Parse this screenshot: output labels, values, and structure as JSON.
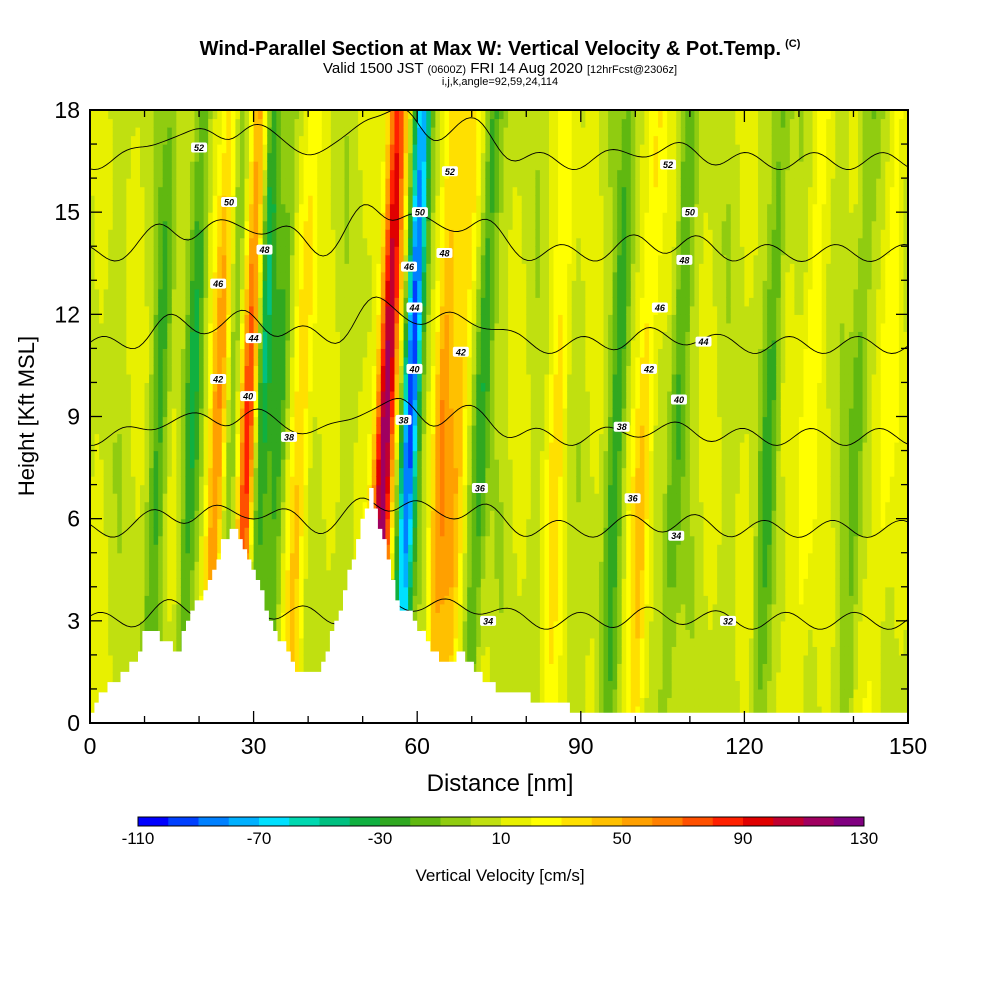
{
  "header": {
    "title_main": "Wind-Parallel Section at Max W: Vertical Velocity & Pot.Temp.",
    "title_mark": "(C)",
    "valid_a": "Valid 1500 JST",
    "valid_b": "(0600Z)",
    "valid_c": "FRI 14 Aug 2020",
    "valid_d": "[12hrFcst@2306z]",
    "indices": "i,j,k,angle=92,59,24,114"
  },
  "chart_data": {
    "type": "heatmap",
    "xlabel": "Distance [nm]",
    "ylabel": "Height [Kft MSL]",
    "xlim": [
      0,
      150
    ],
    "ylim": [
      0,
      18
    ],
    "x_ticks": [
      0,
      30,
      60,
      90,
      120,
      150
    ],
    "y_ticks": [
      0,
      3,
      6,
      9,
      12,
      15,
      18
    ],
    "colorbar": {
      "label": "Vertical Velocity [cm/s]",
      "tick_labels": [
        -110,
        -70,
        -30,
        10,
        50,
        90,
        130
      ],
      "min": -110,
      "max": 130,
      "colors": [
        "#0000ff",
        "#0040ff",
        "#0080ff",
        "#00b0ff",
        "#00e0ff",
        "#00d8b0",
        "#00c080",
        "#10b040",
        "#30a820",
        "#60b810",
        "#90cc10",
        "#c0e010",
        "#e8f000",
        "#ffff00",
        "#ffe000",
        "#ffc000",
        "#ffa000",
        "#ff8000",
        "#ff5000",
        "#ff2000",
        "#e00000",
        "#c00030",
        "#a00060",
        "#800080"
      ]
    },
    "updraft_bands": [
      {
        "x": 23,
        "strength": 55
      },
      {
        "x": 28.5,
        "strength": 80
      },
      {
        "x": 38,
        "strength": 35
      },
      {
        "x": 53.5,
        "strength": 120
      },
      {
        "x": 64,
        "strength": 45
      },
      {
        "x": 67,
        "strength": 40
      },
      {
        "x": 85,
        "strength": 25
      },
      {
        "x": 101,
        "strength": 35
      },
      {
        "x": 131,
        "strength": 22
      },
      {
        "x": 145,
        "strength": 20
      }
    ],
    "downdraft_bands": [
      {
        "x": 12,
        "strength": -30
      },
      {
        "x": 18,
        "strength": -35
      },
      {
        "x": 25,
        "strength": -25
      },
      {
        "x": 30.5,
        "strength": -60
      },
      {
        "x": 34,
        "strength": -30
      },
      {
        "x": 58,
        "strength": -110
      },
      {
        "x": 71,
        "strength": -40
      },
      {
        "x": 96,
        "strength": -35
      },
      {
        "x": 107,
        "strength": -30
      },
      {
        "x": 124,
        "strength": -30
      },
      {
        "x": 140,
        "strength": -25
      }
    ],
    "potential_temperature": {
      "levels": [
        32,
        34,
        36,
        38,
        40,
        42,
        44,
        46,
        48,
        50,
        52
      ],
      "labels": [
        {
          "text": "52",
          "x": 20,
          "y": 16.9
        },
        {
          "text": "50",
          "x": 25.5,
          "y": 15.3
        },
        {
          "text": "48",
          "x": 32,
          "y": 13.9
        },
        {
          "text": "46",
          "x": 23.5,
          "y": 12.9
        },
        {
          "text": "44",
          "x": 30,
          "y": 11.3
        },
        {
          "text": "42",
          "x": 23.5,
          "y": 10.1
        },
        {
          "text": "40",
          "x": 29,
          "y": 9.6
        },
        {
          "text": "38",
          "x": 36.5,
          "y": 8.4
        },
        {
          "text": "52",
          "x": 66,
          "y": 16.2
        },
        {
          "text": "50",
          "x": 60.5,
          "y": 15.0
        },
        {
          "text": "48",
          "x": 65,
          "y": 13.8
        },
        {
          "text": "46",
          "x": 58.5,
          "y": 13.4
        },
        {
          "text": "44",
          "x": 59.5,
          "y": 12.2
        },
        {
          "text": "42",
          "x": 68,
          "y": 10.9
        },
        {
          "text": "40",
          "x": 59.5,
          "y": 10.4
        },
        {
          "text": "38",
          "x": 57.5,
          "y": 8.9
        },
        {
          "text": "36",
          "x": 71.5,
          "y": 6.9
        },
        {
          "text": "34",
          "x": 73,
          "y": 3.0
        },
        {
          "text": "52",
          "x": 106,
          "y": 16.4
        },
        {
          "text": "50",
          "x": 110,
          "y": 15.0
        },
        {
          "text": "48",
          "x": 109,
          "y": 13.6
        },
        {
          "text": "46",
          "x": 104.5,
          "y": 12.2
        },
        {
          "text": "44",
          "x": 112.5,
          "y": 11.2
        },
        {
          "text": "42",
          "x": 102.5,
          "y": 10.4
        },
        {
          "text": "40",
          "x": 108,
          "y": 9.5
        },
        {
          "text": "38",
          "x": 97.5,
          "y": 8.7
        },
        {
          "text": "36",
          "x": 99.5,
          "y": 6.6
        },
        {
          "text": "34",
          "x": 107.5,
          "y": 5.5
        },
        {
          "text": "32",
          "x": 117,
          "y": 3.0
        }
      ]
    },
    "terrain_height": [
      [
        0,
        0.3
      ],
      [
        2.5,
        1.0
      ],
      [
        5,
        1.3
      ],
      [
        7,
        1.6
      ],
      [
        9,
        2.0
      ],
      [
        10,
        2.6
      ],
      [
        12.5,
        2.6
      ],
      [
        13.5,
        2.3
      ],
      [
        14.5,
        2.6
      ],
      [
        15.5,
        2.3
      ],
      [
        16,
        2.0
      ],
      [
        17,
        2.6
      ],
      [
        18,
        3.0
      ],
      [
        19,
        3.4
      ],
      [
        20.5,
        3.7
      ],
      [
        21.5,
        4.0
      ],
      [
        22.5,
        4.3
      ],
      [
        23.5,
        4.9
      ],
      [
        24.5,
        5.3
      ],
      [
        25.5,
        5.6
      ],
      [
        27,
        5.6
      ],
      [
        28,
        5.2
      ],
      [
        29,
        4.8
      ],
      [
        30,
        4.4
      ],
      [
        31,
        4.1
      ],
      [
        32,
        3.6
      ],
      [
        33,
        3.2
      ],
      [
        34,
        2.8
      ],
      [
        35,
        2.4
      ],
      [
        36,
        2.2
      ],
      [
        37,
        1.8
      ],
      [
        38,
        1.6
      ],
      [
        40,
        1.4
      ],
      [
        42,
        1.4
      ],
      [
        43,
        1.9
      ],
      [
        44.5,
        2.6
      ],
      [
        45.5,
        3.2
      ],
      [
        46.5,
        3.6
      ],
      [
        47.5,
        4.4
      ],
      [
        48.5,
        4.9
      ],
      [
        49.5,
        5.5
      ],
      [
        50.5,
        6.3
      ],
      [
        51.5,
        6.8
      ],
      [
        52.5,
        6.3
      ],
      [
        53.5,
        5.6
      ],
      [
        54.5,
        4.9
      ],
      [
        55.5,
        4.2
      ],
      [
        56.5,
        3.6
      ],
      [
        57.5,
        3.3
      ],
      [
        59,
        3.3
      ],
      [
        60,
        3.0
      ],
      [
        61,
        2.6
      ],
      [
        62,
        2.4
      ],
      [
        63.5,
        2.0
      ],
      [
        65,
        1.7
      ],
      [
        68,
        2.0
      ],
      [
        70,
        1.8
      ],
      [
        72,
        1.3
      ],
      [
        74,
        1.1
      ],
      [
        76,
        0.9
      ],
      [
        80,
        0.9
      ],
      [
        82,
        0.6
      ],
      [
        87,
        0.6
      ],
      [
        88,
        0.4
      ],
      [
        93,
        0.4
      ],
      [
        95,
        0.3
      ],
      [
        150,
        0.3
      ]
    ]
  }
}
